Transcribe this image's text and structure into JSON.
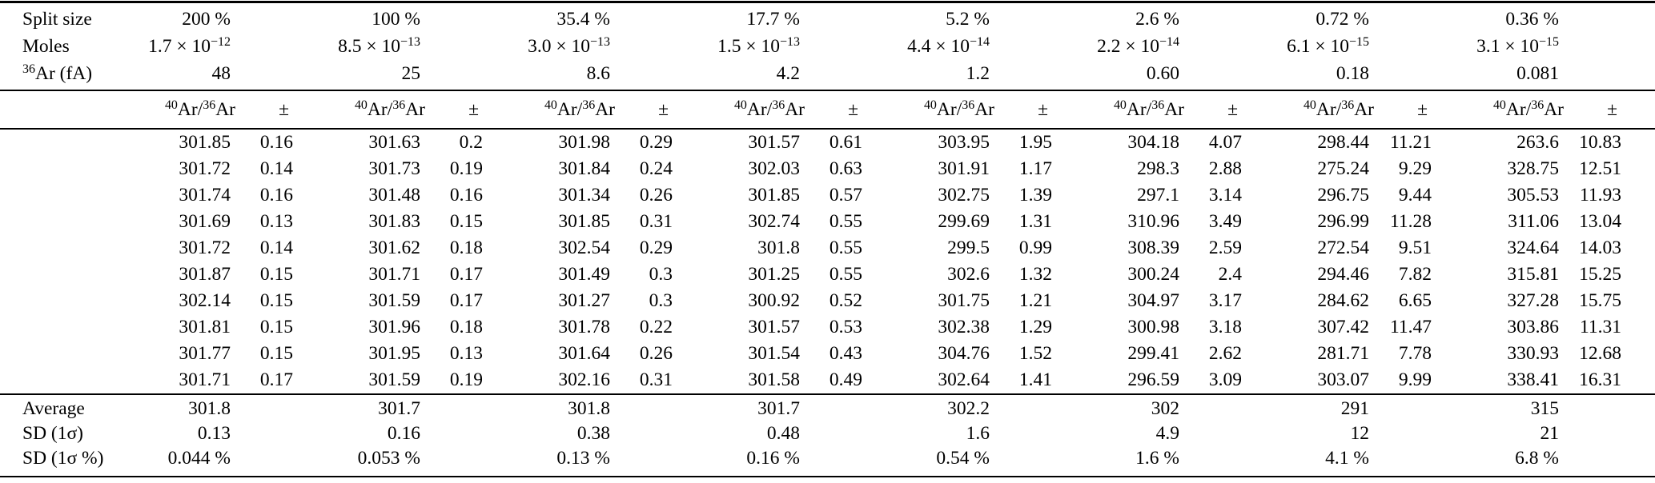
{
  "meta": {
    "background_color": "#ffffff",
    "text_color": "#000000",
    "rule_color": "#000000"
  },
  "table": {
    "top_block": [
      {
        "label": [
          [
            "Split size",
            0
          ]
        ],
        "values": [
          [
            [
              "200 %",
              0
            ]
          ],
          [
            [
              "100 %",
              0
            ]
          ],
          [
            [
              "35.4 %",
              0
            ]
          ],
          [
            [
              "17.7 %",
              0
            ]
          ],
          [
            [
              "5.2 %",
              0
            ]
          ],
          [
            [
              "2.6 %",
              0
            ]
          ],
          [
            [
              "0.72 %",
              0
            ]
          ],
          [
            [
              "0.36 %",
              0
            ]
          ]
        ]
      },
      {
        "label": [
          [
            "Moles",
            0
          ]
        ],
        "values": [
          [
            [
              "1.7 × 10",
              0
            ],
            [
              "−12",
              1
            ]
          ],
          [
            [
              "8.5 × 10",
              0
            ],
            [
              "−13",
              1
            ]
          ],
          [
            [
              "3.0 × 10",
              0
            ],
            [
              "−13",
              1
            ]
          ],
          [
            [
              "1.5 × 10",
              0
            ],
            [
              "−13",
              1
            ]
          ],
          [
            [
              "4.4 × 10",
              0
            ],
            [
              "−14",
              1
            ]
          ],
          [
            [
              "2.2 × 10",
              0
            ],
            [
              "−14",
              1
            ]
          ],
          [
            [
              "6.1 × 10",
              0
            ],
            [
              "−15",
              1
            ]
          ],
          [
            [
              "3.1 × 10",
              0
            ],
            [
              "−15",
              1
            ]
          ]
        ]
      },
      {
        "label": [
          [
            "36",
            1
          ],
          [
            "Ar (fA)",
            0
          ]
        ],
        "values": [
          [
            [
              "48",
              0
            ]
          ],
          [
            [
              "25",
              0
            ]
          ],
          [
            [
              "8.6",
              0
            ]
          ],
          [
            [
              "4.2",
              0
            ]
          ],
          [
            [
              "1.2",
              0
            ]
          ],
          [
            [
              "0.60",
              0
            ]
          ],
          [
            [
              "0.18",
              0
            ]
          ],
          [
            [
              "0.081",
              0
            ]
          ]
        ]
      }
    ],
    "ratio_header": {
      "ratio": [
        [
          "40",
          1
        ],
        [
          "Ar/",
          0
        ],
        [
          "36",
          1
        ],
        [
          "Ar",
          0
        ]
      ],
      "pm": "±"
    },
    "data_rows": [
      [
        [
          "301.85",
          "0.16"
        ],
        [
          "301.63",
          "0.2"
        ],
        [
          "301.98",
          "0.29"
        ],
        [
          "301.57",
          "0.61"
        ],
        [
          "303.95",
          "1.95"
        ],
        [
          "304.18",
          "4.07"
        ],
        [
          "298.44",
          "11.21"
        ],
        [
          "263.6",
          "10.83"
        ]
      ],
      [
        [
          "301.72",
          "0.14"
        ],
        [
          "301.73",
          "0.19"
        ],
        [
          "301.84",
          "0.24"
        ],
        [
          "302.03",
          "0.63"
        ],
        [
          "301.91",
          "1.17"
        ],
        [
          "298.3",
          "2.88"
        ],
        [
          "275.24",
          "9.29"
        ],
        [
          "328.75",
          "12.51"
        ]
      ],
      [
        [
          "301.74",
          "0.16"
        ],
        [
          "301.48",
          "0.16"
        ],
        [
          "301.34",
          "0.26"
        ],
        [
          "301.85",
          "0.57"
        ],
        [
          "302.75",
          "1.39"
        ],
        [
          "297.1",
          "3.14"
        ],
        [
          "296.75",
          "9.44"
        ],
        [
          "305.53",
          "11.93"
        ]
      ],
      [
        [
          "301.69",
          "0.13"
        ],
        [
          "301.83",
          "0.15"
        ],
        [
          "301.85",
          "0.31"
        ],
        [
          "302.74",
          "0.55"
        ],
        [
          "299.69",
          "1.31"
        ],
        [
          "310.96",
          "3.49"
        ],
        [
          "296.99",
          "11.28"
        ],
        [
          "311.06",
          "13.04"
        ]
      ],
      [
        [
          "301.72",
          "0.14"
        ],
        [
          "301.62",
          "0.18"
        ],
        [
          "302.54",
          "0.29"
        ],
        [
          "301.8",
          "0.55"
        ],
        [
          "299.5",
          "0.99"
        ],
        [
          "308.39",
          "2.59"
        ],
        [
          "272.54",
          "9.51"
        ],
        [
          "324.64",
          "14.03"
        ]
      ],
      [
        [
          "301.87",
          "0.15"
        ],
        [
          "301.71",
          "0.17"
        ],
        [
          "301.49",
          "0.3"
        ],
        [
          "301.25",
          "0.55"
        ],
        [
          "302.6",
          "1.32"
        ],
        [
          "300.24",
          "2.4"
        ],
        [
          "294.46",
          "7.82"
        ],
        [
          "315.81",
          "15.25"
        ]
      ],
      [
        [
          "302.14",
          "0.15"
        ],
        [
          "301.59",
          "0.17"
        ],
        [
          "301.27",
          "0.3"
        ],
        [
          "300.92",
          "0.52"
        ],
        [
          "301.75",
          "1.21"
        ],
        [
          "304.97",
          "3.17"
        ],
        [
          "284.62",
          "6.65"
        ],
        [
          "327.28",
          "15.75"
        ]
      ],
      [
        [
          "301.81",
          "0.15"
        ],
        [
          "301.96",
          "0.18"
        ],
        [
          "301.78",
          "0.22"
        ],
        [
          "301.57",
          "0.53"
        ],
        [
          "302.38",
          "1.29"
        ],
        [
          "300.98",
          "3.18"
        ],
        [
          "307.42",
          "11.47"
        ],
        [
          "303.86",
          "11.31"
        ]
      ],
      [
        [
          "301.77",
          "0.15"
        ],
        [
          "301.95",
          "0.13"
        ],
        [
          "301.64",
          "0.26"
        ],
        [
          "301.54",
          "0.43"
        ],
        [
          "304.76",
          "1.52"
        ],
        [
          "299.41",
          "2.62"
        ],
        [
          "281.71",
          "7.78"
        ],
        [
          "330.93",
          "12.68"
        ]
      ],
      [
        [
          "301.71",
          "0.17"
        ],
        [
          "301.59",
          "0.19"
        ],
        [
          "302.16",
          "0.31"
        ],
        [
          "301.58",
          "0.49"
        ],
        [
          "302.64",
          "1.41"
        ],
        [
          "296.59",
          "3.09"
        ],
        [
          "303.07",
          "9.99"
        ],
        [
          "338.41",
          "16.31"
        ]
      ]
    ],
    "summary": [
      {
        "label": "Average",
        "values": [
          "301.8",
          "301.7",
          "301.8",
          "301.7",
          "302.2",
          "302",
          "291",
          "315"
        ]
      },
      {
        "label": "SD (1σ)",
        "values": [
          "0.13",
          "0.16",
          "0.38",
          "0.48",
          "1.6",
          "4.9",
          "12",
          "21"
        ]
      },
      {
        "label": "SD (1σ %)",
        "values": [
          "0.044 %",
          "0.053 %",
          "0.13 %",
          "0.16 %",
          "0.54 %",
          "1.6 %",
          "4.1 %",
          "6.8 %"
        ]
      }
    ]
  }
}
